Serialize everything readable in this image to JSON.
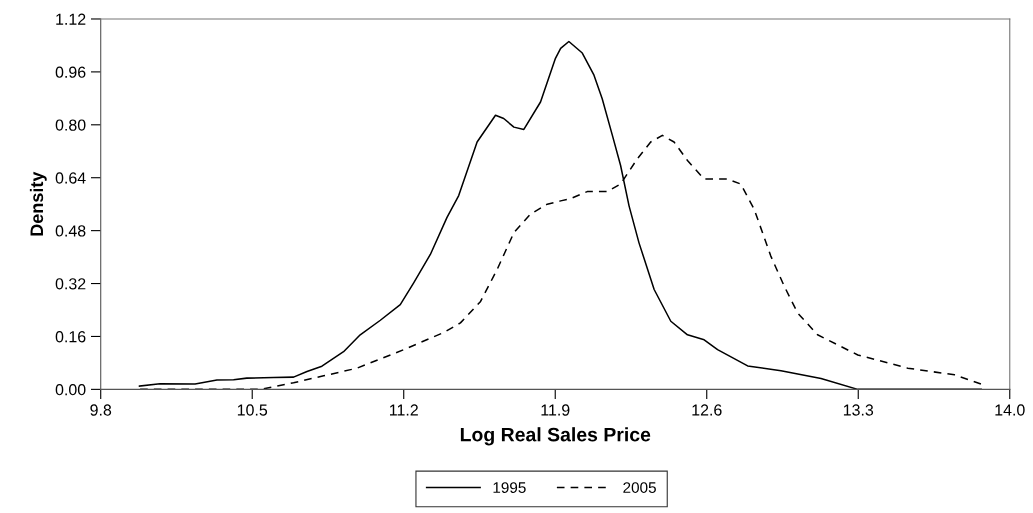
{
  "chart_data": {
    "type": "line",
    "xlabel": "Log Real Sales Price",
    "ylabel": "Density",
    "xlim": [
      9.8,
      14.0
    ],
    "xticks": [
      9.8,
      10.5,
      11.2,
      11.9,
      12.6,
      13.3,
      {
        "value": 14.0,
        "label": "14.0"
      }
    ],
    "ylim": [
      0,
      1.12
    ],
    "yticks": [
      {
        "value": 0,
        "label": "0.00"
      },
      {
        "value": 0.16,
        "label": "0.16"
      },
      {
        "value": 0.32,
        "label": "0.32"
      },
      {
        "value": 0.48,
        "label": "0.48"
      },
      {
        "value": 0.64,
        "label": "0.64"
      },
      {
        "value": 0.8,
        "label": "0.80"
      },
      {
        "value": 0.96,
        "label": "0.96"
      },
      {
        "value": 1.12,
        "label": "1.12"
      }
    ],
    "grid": false,
    "legend": "bottom",
    "marker": "none",
    "series": [
      {
        "name": "1995",
        "color": "#000000",
        "line_style": "solid",
        "x": [
          9.979,
          10.074,
          10.236,
          10.337,
          10.414,
          10.475,
          10.599,
          10.691,
          10.753,
          10.822,
          10.922,
          10.999,
          11.092,
          11.184,
          11.246,
          11.323,
          11.4,
          11.454,
          11.539,
          11.624,
          11.662,
          11.709,
          11.755,
          11.832,
          11.901,
          11.925,
          11.963,
          12.025,
          12.079,
          12.117,
          12.164,
          12.202,
          12.241,
          12.287,
          12.357,
          12.434,
          12.511,
          12.588,
          12.65,
          12.789,
          12.943,
          13.128,
          13.298,
          13.868
        ],
        "values": [
          0.01,
          0.017,
          0.016,
          0.028,
          0.029,
          0.034,
          0.036,
          0.037,
          0.054,
          0.07,
          0.114,
          0.165,
          0.209,
          0.256,
          0.322,
          0.408,
          0.52,
          0.586,
          0.748,
          0.829,
          0.819,
          0.793,
          0.786,
          0.869,
          1.001,
          1.031,
          1.052,
          1.017,
          0.95,
          0.879,
          0.768,
          0.677,
          0.555,
          0.443,
          0.302,
          0.206,
          0.165,
          0.15,
          0.12,
          0.071,
          0.056,
          0.033,
          0.0,
          0.0
        ]
      },
      {
        "name": "2005",
        "color": "#000000",
        "line_style": "dashed",
        "x": [
          9.982,
          10.537,
          10.691,
          10.83,
          10.984,
          11.2,
          11.385,
          11.462,
          11.555,
          11.632,
          11.709,
          11.786,
          11.863,
          11.925,
          11.971,
          12.048,
          12.14,
          12.202,
          12.279,
          12.341,
          12.395,
          12.449,
          12.511,
          12.588,
          12.696,
          12.757,
          12.819,
          12.896,
          12.958,
          13.02,
          13.112,
          13.298,
          13.529,
          13.745,
          13.868
        ],
        "values": [
          0.0,
          0.0,
          0.02,
          0.041,
          0.064,
          0.12,
          0.172,
          0.201,
          0.266,
          0.363,
          0.474,
          0.53,
          0.56,
          0.57,
          0.577,
          0.598,
          0.598,
          0.621,
          0.697,
          0.748,
          0.768,
          0.748,
          0.692,
          0.636,
          0.636,
          0.621,
          0.545,
          0.403,
          0.312,
          0.231,
          0.165,
          0.104,
          0.064,
          0.044,
          0.016
        ]
      }
    ]
  }
}
